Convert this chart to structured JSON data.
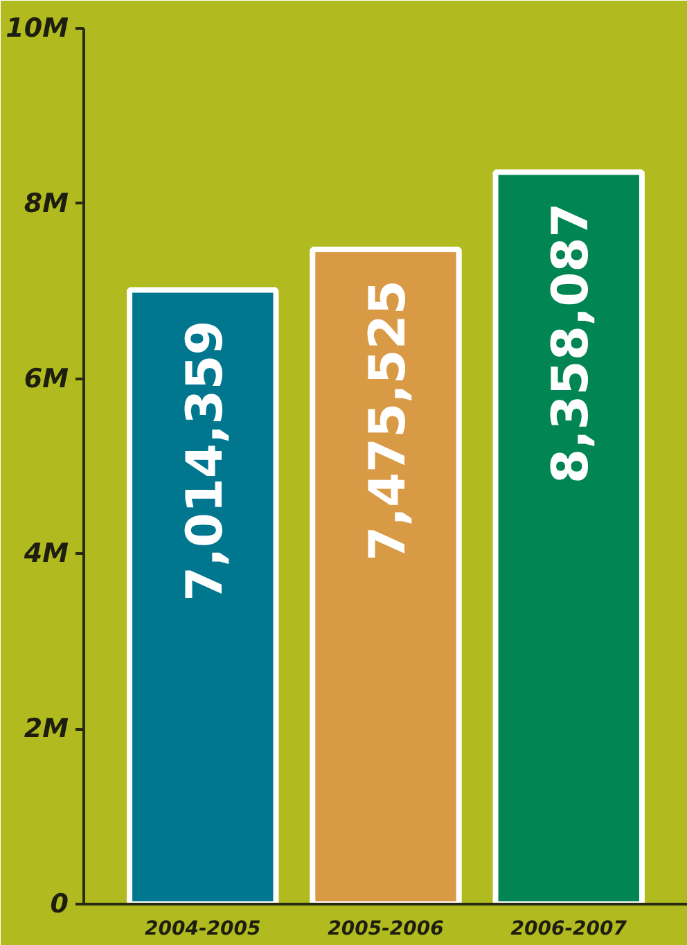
{
  "chart_data": {
    "type": "bar",
    "categories": [
      "2004-2005",
      "2005-2006",
      "2006-2007"
    ],
    "values": [
      7014359,
      7475525,
      8358087
    ],
    "colors": [
      "#00778f",
      "#d99a46",
      "#008553"
    ],
    "value_labels": [
      "7,014,359",
      "7,475,525",
      "8,358,087"
    ],
    "ylim": [
      0,
      10000000
    ],
    "yticks": [
      {
        "value": 0,
        "label": "0"
      },
      {
        "value": 2000000,
        "label": "2M"
      },
      {
        "value": 4000000,
        "label": "4M"
      },
      {
        "value": 6000000,
        "label": "6M"
      },
      {
        "value": 8000000,
        "label": "8M"
      },
      {
        "value": 10000000,
        "label": "10M"
      }
    ],
    "grid": false
  }
}
